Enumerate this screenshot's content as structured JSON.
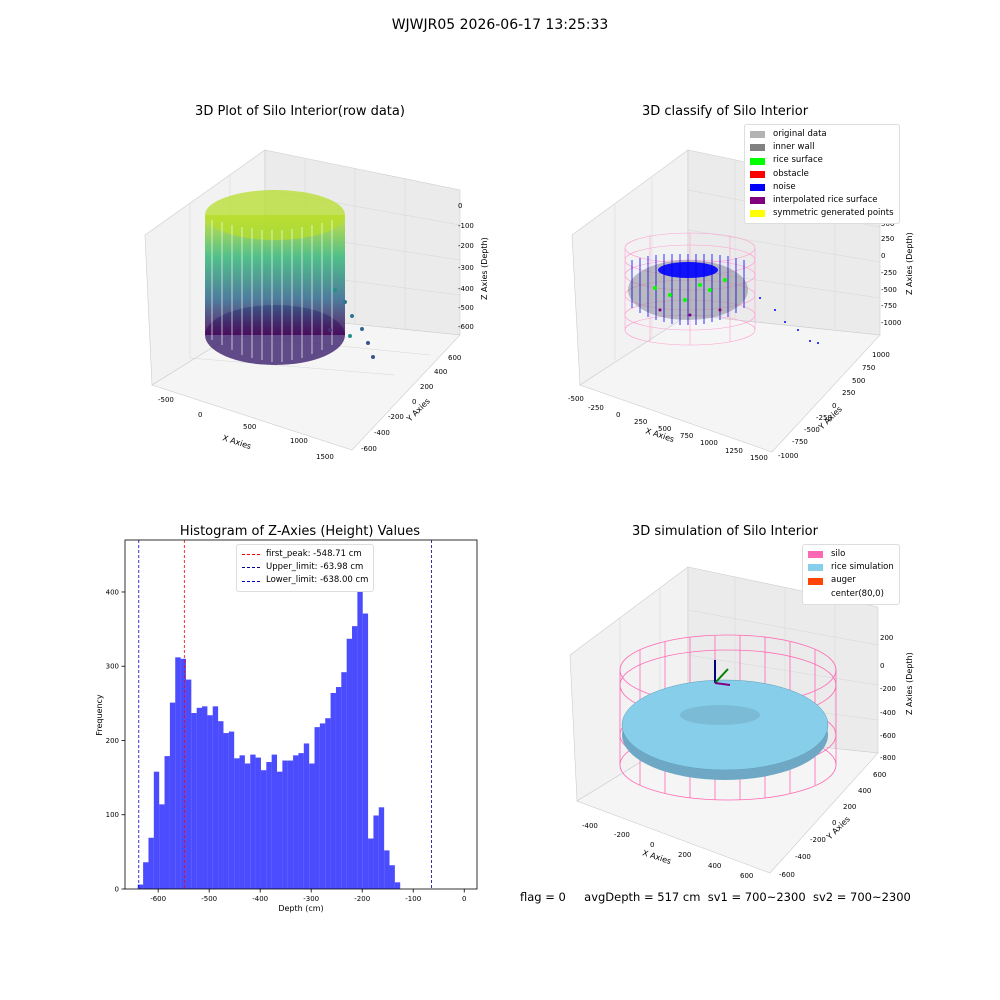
{
  "figure": {
    "suptitle": "WJWJR05 2026-06-17 13:25:33",
    "status": {
      "flag": "flag = 0",
      "avg_depth": "avgDepth = 517 cm",
      "sv1": "sv1 = 700~2300",
      "sv2": "sv2 = 700~2300"
    }
  },
  "panels": {
    "raw": {
      "title": "3D Plot of Silo Interior(row data)",
      "xlabel": "X Axies",
      "ylabel": "Y Axies",
      "zlabel": "Z Axies (Depth)",
      "xticks": [
        "-500",
        "0",
        "500",
        "1000",
        "1500"
      ],
      "yticks": [
        "600",
        "400",
        "200",
        "0",
        "-200",
        "-400",
        "-600"
      ],
      "zticks": [
        "0",
        "-100",
        "-200",
        "-300",
        "-400",
        "-500",
        "-600"
      ]
    },
    "classify": {
      "title": "3D classify of Silo Interior",
      "xlabel": "X Axies",
      "ylabel": "Y Axies",
      "zlabel": "Z Axies (Depth)",
      "xticks": [
        "-500",
        "-250",
        "0",
        "250",
        "500",
        "750",
        "1000",
        "1250",
        "1500"
      ],
      "yticks": [
        "1000",
        "750",
        "500",
        "250",
        "0",
        "-250",
        "-500",
        "-750",
        "-1000"
      ],
      "zticks": [
        "750",
        "500",
        "250",
        "0",
        "-250",
        "-500",
        "-750",
        "-1000"
      ],
      "legend": [
        {
          "label": "original data",
          "color": "#b3b3b3"
        },
        {
          "label": "inner wall",
          "color": "#808080"
        },
        {
          "label": "rice surface",
          "color": "#00ff00"
        },
        {
          "label": "obstacle",
          "color": "#ff0000"
        },
        {
          "label": "noise",
          "color": "#0000ff"
        },
        {
          "label": "interpolated rice surface",
          "color": "#800080"
        },
        {
          "label": "symmetric generated points",
          "color": "#ffff00"
        }
      ]
    },
    "simulation": {
      "title": "3D simulation of Silo Interior",
      "xlabel": "X Axies",
      "ylabel": "Y Axies",
      "zlabel": "Z Axies (Depth)",
      "xticks": [
        "-400",
        "-200",
        "0",
        "200",
        "400",
        "600"
      ],
      "yticks": [
        "600",
        "400",
        "200",
        "0",
        "-200",
        "-400",
        "-600"
      ],
      "zticks": [
        "200",
        "0",
        "-200",
        "-400",
        "-600",
        "-800"
      ],
      "legend": [
        {
          "label": "silo",
          "color": "#ff69b4"
        },
        {
          "label": "rice simulation",
          "color": "#87ceeb"
        },
        {
          "label": "auger",
          "color": "#ff4500"
        },
        {
          "label": "center(80,0)",
          "color": "#ffffff"
        }
      ]
    }
  },
  "chart_data": {
    "type": "bar",
    "title": "Histogram of Z-Axies (Height) Values",
    "xlabel": "Depth (cm)",
    "ylabel": "Frequency",
    "xlim": [
      -665,
      25
    ],
    "ylim": [
      0,
      470
    ],
    "xticks": [
      -600,
      -500,
      -400,
      -300,
      -200,
      -100,
      0
    ],
    "yticks": [
      0,
      100,
      200,
      300,
      400
    ],
    "bin_start": -640,
    "bin_width": 10.5,
    "values": [
      6,
      36,
      69,
      158,
      114,
      179,
      251,
      312,
      310,
      282,
      237,
      244,
      246,
      234,
      246,
      226,
      210,
      212,
      176,
      180,
      169,
      181,
      177,
      160,
      171,
      181,
      158,
      173,
      173,
      180,
      183,
      196,
      169,
      218,
      223,
      230,
      264,
      272,
      292,
      337,
      354,
      449,
      371,
      68,
      99,
      110,
      52,
      32,
      9
    ],
    "bar_color": "#0000ff",
    "vlines": [
      {
        "label": "first_peak: -548.71 cm",
        "x": -548.71,
        "color": "#ff0000"
      },
      {
        "label": "Upper_limit: -63.98 cm",
        "x": -63.98,
        "color": "#00008b"
      },
      {
        "label": "Lower_limit: -638.00 cm",
        "x": -638.0,
        "color": "#0000cd"
      }
    ]
  }
}
